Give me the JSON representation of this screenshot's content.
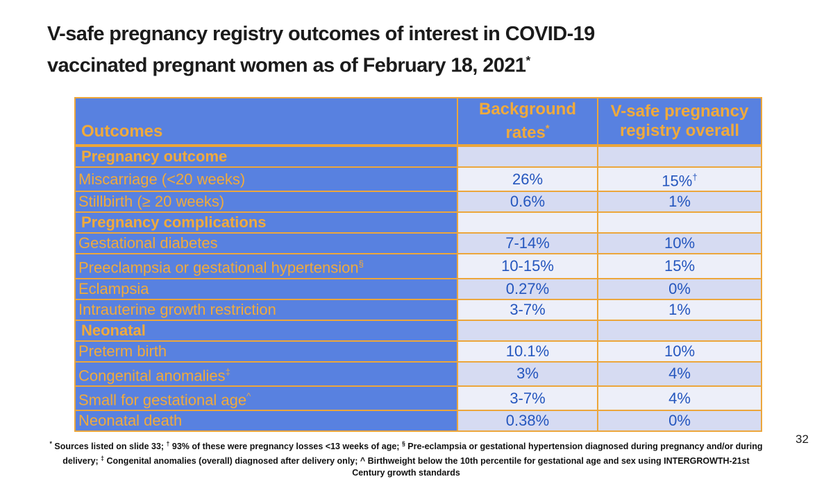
{
  "slide": {
    "title": {
      "line1": "V-safe pregnancy registry outcomes of interest in COVID-19",
      "line2": "vaccinated pregnant women as of February 18, 2021",
      "superscript": "*"
    },
    "page_number": "32"
  },
  "table": {
    "header": {
      "outcomes": "Outcomes",
      "background_line1": "Background",
      "background_line2": "rates",
      "background_sup": "*",
      "vsafe_line1": "V-safe pregnancy",
      "vsafe_line2": "registry overall"
    },
    "rows": [
      {
        "label": "Pregnancy outcome",
        "sup": "",
        "section": true,
        "background": "",
        "background_sup": "",
        "vsafe": "",
        "vsafe_sup": ""
      },
      {
        "label": "Miscarriage (<20 weeks)",
        "sup": "",
        "section": false,
        "background": "26%",
        "background_sup": "",
        "vsafe": "15%",
        "vsafe_sup": "†"
      },
      {
        "label": "Stillbirth (≥ 20 weeks)",
        "sup": "",
        "section": false,
        "background": "0.6%",
        "background_sup": "",
        "vsafe": "1%",
        "vsafe_sup": ""
      },
      {
        "label": "Pregnancy complications",
        "sup": "",
        "section": true,
        "background": "",
        "background_sup": "",
        "vsafe": "",
        "vsafe_sup": ""
      },
      {
        "label": "Gestational diabetes",
        "sup": "",
        "section": false,
        "background": "7-14%",
        "background_sup": "",
        "vsafe": "10%",
        "vsafe_sup": ""
      },
      {
        "label": "Preeclampsia or gestational hypertension",
        "sup": "§",
        "section": false,
        "background": "10-15%",
        "background_sup": "",
        "vsafe": "15%",
        "vsafe_sup": ""
      },
      {
        "label": "Eclampsia",
        "sup": "",
        "section": false,
        "background": "0.27%",
        "background_sup": "",
        "vsafe": "0%",
        "vsafe_sup": ""
      },
      {
        "label": "Intrauterine growth restriction",
        "sup": "",
        "section": false,
        "background": "3-7%",
        "background_sup": "",
        "vsafe": "1%",
        "vsafe_sup": ""
      },
      {
        "label": "Neonatal",
        "sup": "",
        "section": true,
        "background": "",
        "background_sup": "",
        "vsafe": "",
        "vsafe_sup": ""
      },
      {
        "label": "Preterm birth",
        "sup": "",
        "section": false,
        "background": "10.1%",
        "background_sup": "",
        "vsafe": "10%",
        "vsafe_sup": ""
      },
      {
        "label": "Congenital anomalies",
        "sup": "‡",
        "section": false,
        "background": "3%",
        "background_sup": "",
        "vsafe": "4%",
        "vsafe_sup": ""
      },
      {
        "label": "Small for gestational age",
        "sup": "^",
        "section": false,
        "background": "3-7%",
        "background_sup": "",
        "vsafe": "4%",
        "vsafe_sup": ""
      },
      {
        "label": "Neonatal death",
        "sup": "",
        "section": false,
        "background": "0.38%",
        "background_sup": "",
        "vsafe": "0%",
        "vsafe_sup": ""
      }
    ]
  },
  "footnote": {
    "segments": [
      {
        "sup": "*"
      },
      {
        "text": " Sources listed on slide 33; "
      },
      {
        "sup": "†"
      },
      {
        "text": " 93% of these were pregnancy losses <13 weeks of age; "
      },
      {
        "sup": "§"
      },
      {
        "text": " Pre-eclampsia or gestational hypertension diagnosed during pregnancy and/or during delivery; "
      },
      {
        "sup": "‡"
      },
      {
        "text": " Congenital anomalies (overall) diagnosed after delivery only; ^ Birthweight below the 10th percentile for gestational age and sex using INTERGROWTH-21st Century growth standards"
      }
    ]
  },
  "colors": {
    "accent_orange": "#ECA63B",
    "text_orange": "#F0AA3C",
    "cell_blue": "#5881E0",
    "row_shade_dark": "#D6DBF2",
    "row_shade_light": "#EDEFF9",
    "value_blue": "#2456BE",
    "text_dark": "#1B1B1B"
  }
}
